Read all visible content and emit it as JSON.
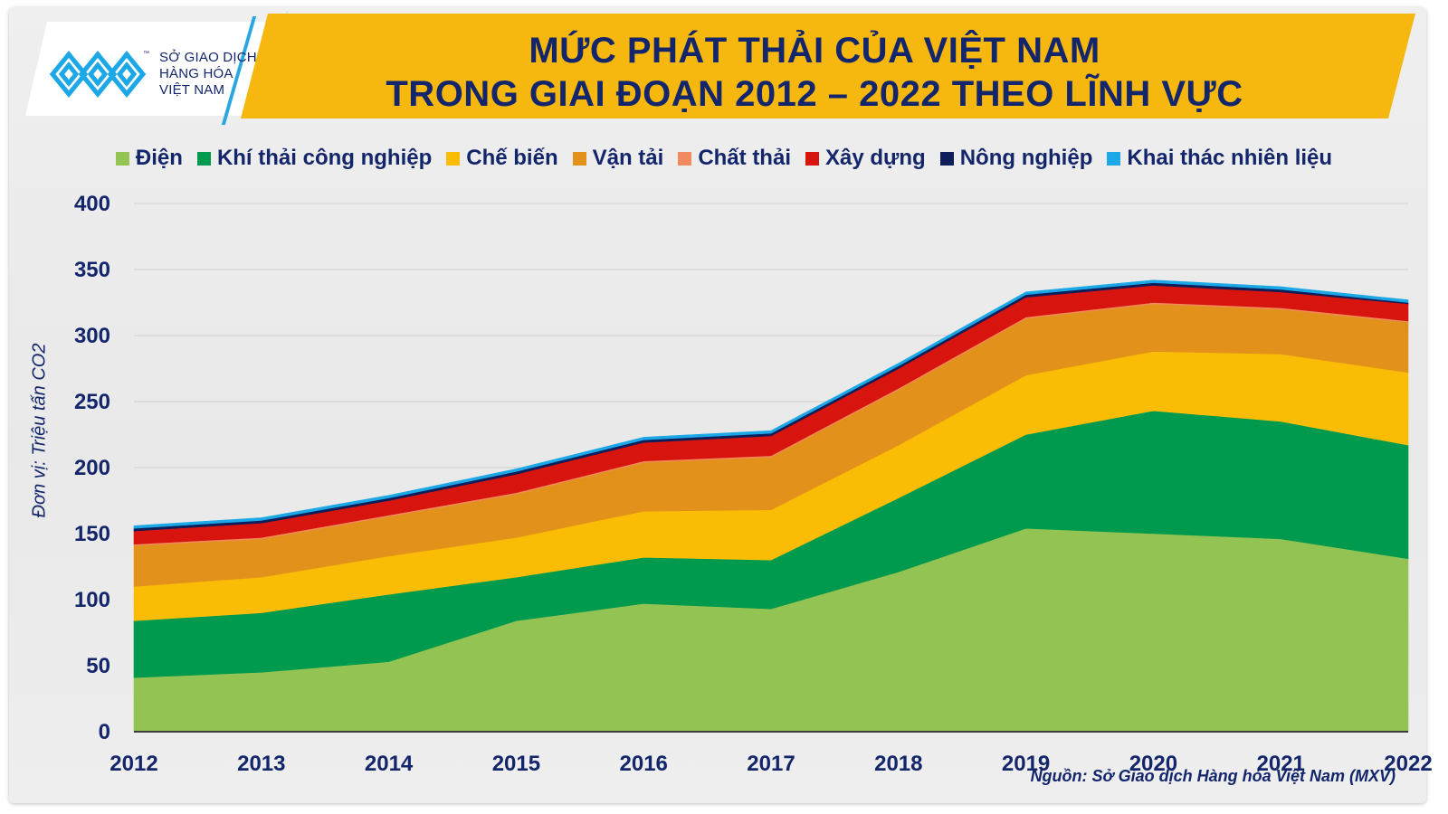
{
  "header": {
    "title_line1": "MỨC PHÁT THẢI CỦA VIỆT NAM",
    "title_line2": "TRONG GIAI ĐOẠN 2012 – 2022 THEO LĨNH VỰC"
  },
  "logo": {
    "line1": "SỞ GIAO DỊCH",
    "line2": "HÀNG HÓA",
    "line3": "VIỆT NAM",
    "tm": "™"
  },
  "footer": {
    "source": "Nguồn: Sở Giao dịch Hàng hóa Việt Nam (MXV)"
  },
  "chart_data": {
    "type": "area",
    "stacked": true,
    "title": "MỨC PHÁT THẢI CỦA VIỆT NAM TRONG GIAI ĐOẠN 2012 – 2022 THEO LĨNH VỰC",
    "ylabel": "Đơn vị: Triệu tấn CO2",
    "xlabel": "",
    "ylim": [
      0,
      400
    ],
    "yticks": [
      0,
      50,
      100,
      150,
      200,
      250,
      300,
      350,
      400
    ],
    "grid": true,
    "legend_position": "top",
    "x": [
      "2012",
      "2013",
      "2014",
      "2015",
      "2016",
      "2017",
      "2018",
      "2019",
      "2020",
      "2021",
      "2022"
    ],
    "series": [
      {
        "name": "Điện",
        "color": "#92c353",
        "values": [
          41,
          45,
          53,
          84,
          97,
          93,
          121,
          154,
          150,
          146,
          131
        ]
      },
      {
        "name": "Khí thải công nghiệp",
        "color": "#009a4e",
        "values": [
          43,
          45,
          51,
          33,
          35,
          37,
          56,
          71,
          93,
          89,
          86
        ]
      },
      {
        "name": "Chế biến",
        "color": "#fbbc05",
        "values": [
          26,
          27,
          29,
          30,
          35,
          38,
          40,
          45,
          45,
          51,
          55
        ]
      },
      {
        "name": "Vận tải",
        "color": "#e2921a",
        "values": [
          31,
          29,
          30,
          33,
          37,
          40,
          42,
          43,
          36,
          34,
          38
        ]
      },
      {
        "name": "Chất thải",
        "color": "#f28a5f",
        "values": [
          1,
          1,
          1,
          1,
          1,
          1,
          1,
          1,
          1,
          1,
          1
        ]
      },
      {
        "name": "Xây dựng",
        "color": "#d7140d",
        "values": [
          10,
          11,
          11,
          14,
          14,
          15,
          15,
          15,
          13,
          12,
          13
        ]
      },
      {
        "name": "Nông nghiệp",
        "color": "#0e1e5b",
        "values": [
          2,
          2,
          2,
          2,
          2,
          2,
          2,
          2,
          2,
          2,
          1
        ]
      },
      {
        "name": "Khai thác nhiên liệu",
        "color": "#1ca8e6",
        "values": [
          2,
          2,
          2,
          2,
          2,
          2,
          2,
          2,
          2,
          2,
          2
        ]
      }
    ]
  }
}
